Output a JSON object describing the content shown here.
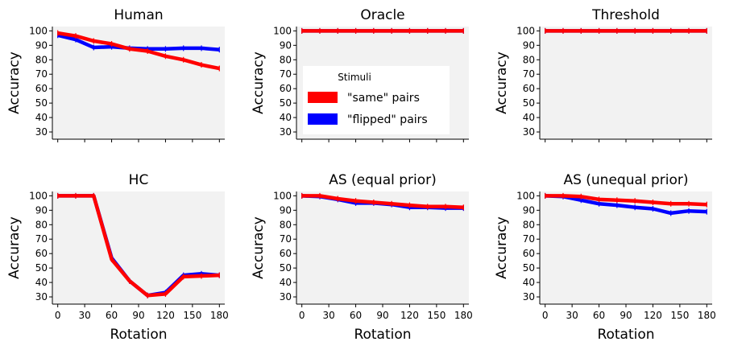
{
  "chart_data": {
    "type": "line",
    "legend": {
      "title": "Stimuli",
      "placement": "panel-oracle-center",
      "entries": [
        {
          "label": "\"same\" pairs",
          "color": "#ff0000"
        },
        {
          "label": "\"flipped\" pairs",
          "color": "#0000ff"
        }
      ]
    },
    "x": [
      0,
      20,
      40,
      60,
      80,
      100,
      120,
      140,
      160,
      180
    ],
    "xticks": [
      0,
      30,
      60,
      90,
      120,
      150,
      180
    ],
    "yticks": [
      30,
      40,
      50,
      60,
      70,
      80,
      90,
      100
    ],
    "xlim": [
      -6,
      186
    ],
    "ylim": [
      25,
      103
    ],
    "grid": false,
    "xlabel": "Rotation",
    "ylabel": "Accuracy",
    "panels": [
      {
        "title": "Human",
        "series": [
          {
            "name": "\"flipped\" pairs",
            "color": "#0000ff",
            "values": [
              97,
              94,
              88.5,
              89,
              88,
              87.5,
              87.5,
              88,
              88,
              87
            ]
          },
          {
            "name": "\"same\" pairs",
            "color": "#ff0000",
            "values": [
              98.5,
              96.5,
              93,
              91,
              87.5,
              86,
              82.5,
              80,
              76.5,
              74
            ]
          }
        ]
      },
      {
        "title": "Oracle",
        "series": [
          {
            "name": "\"flipped\" pairs",
            "color": "#0000ff",
            "values": [
              100,
              100,
              100,
              100,
              100,
              100,
              100,
              100,
              100,
              100
            ]
          },
          {
            "name": "\"same\" pairs",
            "color": "#ff0000",
            "values": [
              100,
              100,
              100,
              100,
              100,
              100,
              100,
              100,
              100,
              100
            ]
          }
        ]
      },
      {
        "title": "Threshold",
        "series": [
          {
            "name": "\"flipped\" pairs",
            "color": "#0000ff",
            "values": [
              100,
              100,
              100,
              100,
              100,
              100,
              100,
              100,
              100,
              100
            ]
          },
          {
            "name": "\"same\" pairs",
            "color": "#ff0000",
            "values": [
              100,
              100,
              100,
              100,
              100,
              100,
              100,
              100,
              100,
              100
            ]
          }
        ]
      },
      {
        "title": "HC",
        "series": [
          {
            "name": "\"flipped\" pairs",
            "color": "#0000ff",
            "values": [
              100,
              100,
              100,
              57,
              41,
              31,
              33,
              45,
              46,
              45
            ]
          },
          {
            "name": "\"same\" pairs",
            "color": "#ff0000",
            "values": [
              100,
              100,
              100,
              56,
              41,
              31,
              32,
              44,
              44.5,
              45
            ]
          }
        ]
      },
      {
        "title": "AS (equal prior)",
        "series": [
          {
            "name": "\"flipped\" pairs",
            "color": "#0000ff",
            "values": [
              100,
              99.5,
              97.5,
              95,
              95,
              94,
              92,
              92,
              91.5,
              91.5
            ]
          },
          {
            "name": "\"same\" pairs",
            "color": "#ff0000",
            "values": [
              100,
              100,
              98,
              96.5,
              95.5,
              94.5,
              93.5,
              92.5,
              92.5,
              92
            ]
          }
        ]
      },
      {
        "title": "AS (unequal prior)",
        "series": [
          {
            "name": "\"flipped\" pairs",
            "color": "#0000ff",
            "values": [
              100,
              99.5,
              97,
              94.5,
              93.5,
              92,
              91,
              88,
              89.5,
              89
            ]
          },
          {
            "name": "\"same\" pairs",
            "color": "#ff0000",
            "values": [
              100,
              100,
              99.5,
              97.5,
              97,
              96.5,
              95.5,
              94.5,
              94.5,
              94
            ]
          }
        ]
      }
    ]
  }
}
